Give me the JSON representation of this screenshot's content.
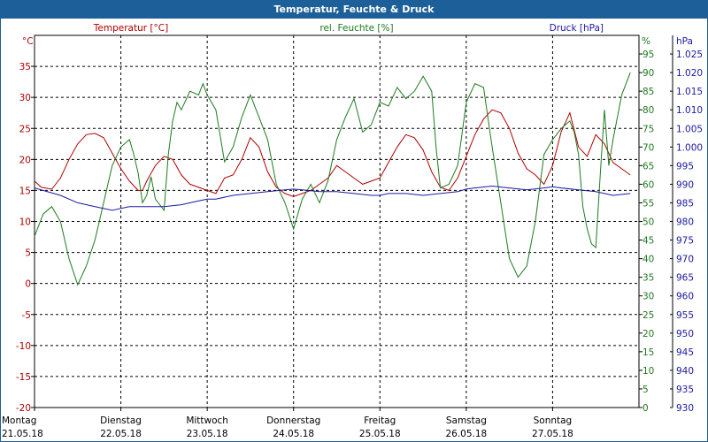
{
  "window": {
    "title": "Temperatur, Feuchte & Druck"
  },
  "colors": {
    "temperature": "#b00000",
    "humidity": "#1f7a1f",
    "pressure": "#1a1aa0",
    "titlebar": "#1d5f98"
  },
  "chart_data": {
    "type": "line",
    "title": "Temperatur, Feuchte & Druck",
    "grid": true,
    "x_range": [
      0,
      7
    ],
    "x_ticks": [
      {
        "day": "Montag",
        "date": "21.05.18"
      },
      {
        "day": "Dienstag",
        "date": "22.05.18"
      },
      {
        "day": "Mittwoch",
        "date": "23.05.18"
      },
      {
        "day": "Donnerstag",
        "date": "24.05.18"
      },
      {
        "day": "Freitag",
        "date": "25.05.18"
      },
      {
        "day": "Samstag",
        "date": "26.05.18"
      },
      {
        "day": "Sonntag",
        "date": "27.05.18"
      }
    ],
    "axes": {
      "temperature": {
        "label": "Temperatur [°C]",
        "unit": "°C",
        "range": [
          -20,
          40
        ],
        "ticks": [
          "35",
          "30",
          "25",
          "20",
          "15",
          "10",
          "5",
          "0",
          "-5",
          "-10",
          "-15",
          "-20"
        ]
      },
      "humidity": {
        "label": "rel. Feuchte [%]",
        "unit": "%",
        "range": [
          0,
          100
        ],
        "ticks": [
          "95",
          "90",
          "85",
          "80",
          "75",
          "70",
          "65",
          "60",
          "55",
          "50",
          "45",
          "40",
          "35",
          "30",
          "25",
          "20",
          "15",
          "10",
          "5",
          "0"
        ]
      },
      "pressure": {
        "label": "Druck [hPa]",
        "unit": "hPa",
        "range": [
          930,
          1030
        ],
        "ticks": [
          "1.025",
          "1.020",
          "1.015",
          "1.010",
          "1.005",
          "1.000",
          "995",
          "990",
          "985",
          "980",
          "975",
          "970",
          "965",
          "960",
          "955",
          "950",
          "945",
          "940",
          "935",
          "930"
        ]
      }
    },
    "series": [
      {
        "name": "Temperatur [°C]",
        "axis": "temperature",
        "x": [
          0,
          0.08,
          0.2,
          0.3,
          0.4,
          0.5,
          0.6,
          0.7,
          0.8,
          0.9,
          1.0,
          1.1,
          1.2,
          1.25,
          1.3,
          1.4,
          1.5,
          1.6,
          1.7,
          1.8,
          1.9,
          2.0,
          2.1,
          2.2,
          2.3,
          2.4,
          2.5,
          2.6,
          2.7,
          2.8,
          2.9,
          3.0,
          3.1,
          3.2,
          3.3,
          3.4,
          3.5,
          3.6,
          3.7,
          3.8,
          3.9,
          4.0,
          4.1,
          4.2,
          4.3,
          4.4,
          4.5,
          4.6,
          4.7,
          4.8,
          4.9,
          5.0,
          5.1,
          5.2,
          5.3,
          5.4,
          5.5,
          5.6,
          5.7,
          5.8,
          5.9,
          6.0,
          6.1,
          6.2,
          6.3,
          6.4,
          6.5,
          6.6,
          6.7,
          6.8,
          6.9
        ],
        "y": [
          16.5,
          15.5,
          15.2,
          17,
          20,
          22.5,
          24,
          24.2,
          23.5,
          21,
          18.5,
          16.5,
          15,
          15,
          16.5,
          19,
          20.5,
          20,
          17.5,
          16,
          15.5,
          15,
          14.5,
          17,
          17.5,
          20,
          23.5,
          22,
          18,
          15.5,
          14.5,
          14,
          14.5,
          15,
          16,
          17,
          19,
          18,
          17,
          16,
          16.5,
          17,
          19.5,
          22,
          24,
          23.5,
          21.5,
          18,
          15.5,
          15,
          17,
          20.5,
          24,
          26.5,
          28,
          27.5,
          25,
          21,
          18.5,
          17.5,
          16,
          19,
          24.5,
          27.5,
          22,
          20.5,
          24,
          22.5,
          19.5,
          18.5,
          17.5
        ]
      },
      {
        "name": "rel. Feuchte [%]",
        "axis": "humidity",
        "x": [
          0,
          0.1,
          0.2,
          0.3,
          0.4,
          0.5,
          0.6,
          0.7,
          0.8,
          0.9,
          1.0,
          1.1,
          1.15,
          1.2,
          1.25,
          1.3,
          1.35,
          1.4,
          1.5,
          1.55,
          1.6,
          1.65,
          1.7,
          1.8,
          1.9,
          1.95,
          2.0,
          2.1,
          2.2,
          2.3,
          2.4,
          2.5,
          2.6,
          2.7,
          2.8,
          2.9,
          3.0,
          3.1,
          3.2,
          3.3,
          3.4,
          3.5,
          3.6,
          3.7,
          3.8,
          3.9,
          4.0,
          4.1,
          4.2,
          4.3,
          4.4,
          4.5,
          4.6,
          4.65,
          4.7,
          4.8,
          4.9,
          5.0,
          5.1,
          5.2,
          5.3,
          5.4,
          5.5,
          5.6,
          5.7,
          5.8,
          5.9,
          6.0,
          6.1,
          6.2,
          6.25,
          6.3,
          6.35,
          6.4,
          6.45,
          6.5,
          6.55,
          6.6,
          6.65,
          6.7,
          6.8,
          6.9
        ],
        "y": [
          46,
          52,
          54,
          50,
          40,
          33,
          38,
          45,
          55,
          65,
          70,
          72,
          68,
          63,
          55,
          57,
          62,
          56,
          53,
          68,
          77,
          82,
          80,
          85,
          84,
          87,
          84,
          80,
          66,
          70,
          78,
          84,
          78,
          72,
          60,
          55,
          48,
          56,
          60,
          55,
          61,
          72,
          78,
          83,
          74,
          76,
          82,
          81,
          86,
          83,
          85,
          89,
          85,
          70,
          59,
          60,
          65,
          82,
          87,
          86,
          70,
          55,
          40,
          35,
          38,
          50,
          68,
          72,
          75,
          77,
          74,
          68,
          54,
          48,
          44,
          43,
          62,
          80,
          65,
          72,
          84,
          90
        ]
      },
      {
        "name": "Druck [hPa]",
        "axis": "pressure",
        "x": [
          0,
          0.3,
          0.5,
          0.7,
          0.9,
          1.0,
          1.1,
          1.3,
          1.5,
          1.7,
          1.9,
          2.0,
          2.1,
          2.3,
          2.5,
          2.7,
          2.9,
          3.0,
          3.1,
          3.3,
          3.5,
          3.7,
          3.9,
          4.0,
          4.1,
          4.3,
          4.5,
          4.7,
          4.9,
          5.0,
          5.1,
          5.3,
          5.5,
          5.7,
          5.9,
          6.0,
          6.1,
          6.3,
          6.5,
          6.7,
          6.9
        ],
        "y": [
          989,
          987,
          985,
          984,
          983,
          983.5,
          984,
          984,
          984,
          984.5,
          985.5,
          986,
          986,
          987,
          987.5,
          988,
          988.5,
          988.7,
          988.5,
          988,
          988,
          987.5,
          987,
          987,
          987.5,
          987.5,
          987,
          987.5,
          988,
          988.7,
          989,
          989.5,
          989,
          988.5,
          989,
          989.3,
          989,
          988.5,
          988,
          987,
          987.5
        ]
      }
    ]
  }
}
